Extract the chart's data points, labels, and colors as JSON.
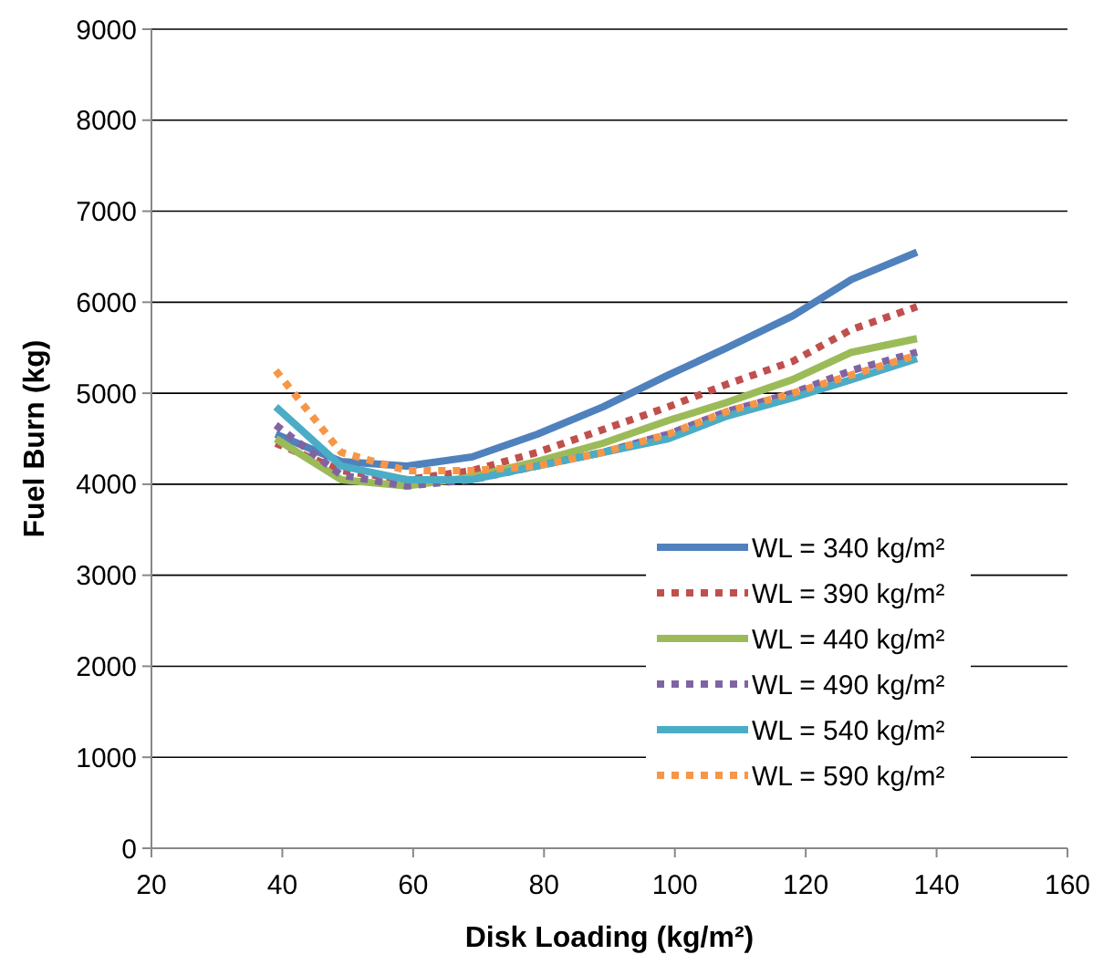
{
  "chart_data": {
    "type": "line",
    "xlabel": "Disk Loading (kg/m²)",
    "ylabel": "Fuel Burn (kg)",
    "x": [
      39,
      49,
      59,
      69,
      79,
      89,
      99,
      108,
      118,
      127,
      137
    ],
    "xlim": [
      20,
      160
    ],
    "xticks": [
      20,
      40,
      60,
      80,
      100,
      120,
      140,
      160
    ],
    "ylim": [
      0,
      9000
    ],
    "yticks": [
      0,
      1000,
      2000,
      3000,
      4000,
      5000,
      6000,
      7000,
      8000,
      9000
    ],
    "grid": "y",
    "legend": "bottom right",
    "series": [
      {
        "name": "WL = 340 kg/m²",
        "color": "#4f81bd",
        "line_style": "solid",
        "values": [
          4550,
          4250,
          4200,
          4300,
          4550,
          4850,
          5200,
          5500,
          5850,
          6250,
          6550
        ]
      },
      {
        "name": "WL = 390 kg/m²",
        "color": "#c0504d",
        "line_style": "dotted",
        "values": [
          4450,
          4150,
          4050,
          4150,
          4350,
          4600,
          4850,
          5100,
          5350,
          5700,
          5950
        ]
      },
      {
        "name": "WL = 440 kg/m²",
        "color": "#9bbb59",
        "line_style": "solid",
        "values": [
          4500,
          4050,
          3980,
          4080,
          4250,
          4450,
          4700,
          4900,
          5150,
          5450,
          5600
        ]
      },
      {
        "name": "WL = 490 kg/m²",
        "color": "#8064a2",
        "line_style": "dotted",
        "values": [
          4650,
          4100,
          3980,
          4050,
          4200,
          4350,
          4550,
          4800,
          5000,
          5250,
          5450
        ]
      },
      {
        "name": "WL = 540 kg/m²",
        "color": "#4bacc6",
        "line_style": "solid",
        "values": [
          4850,
          4200,
          4050,
          4050,
          4200,
          4350,
          4500,
          4750,
          4950,
          5150,
          5380
        ]
      },
      {
        "name": "WL = 590 kg/m²",
        "color": "#f79646",
        "line_style": "dotted",
        "values": [
          5250,
          4350,
          4150,
          4150,
          4200,
          4350,
          4550,
          4800,
          5000,
          5200,
          5420
        ]
      }
    ]
  }
}
